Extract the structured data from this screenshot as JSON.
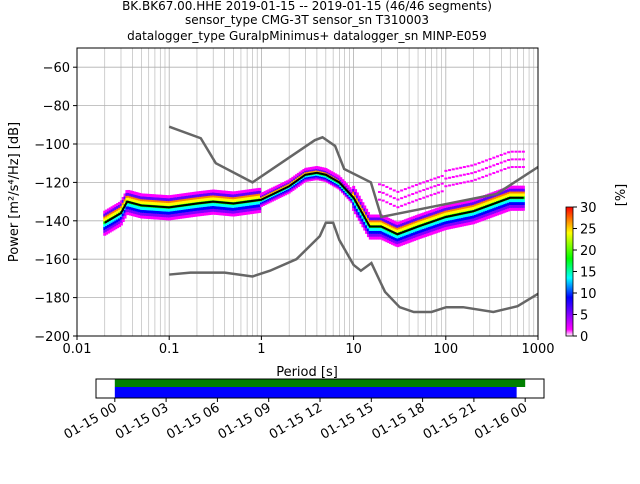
{
  "chart_data": {
    "type": "line",
    "title_lines": [
      "BK.BK67.00.HHE   2019-01-15 -- 2019-01-15  (46/46 segments)",
      "sensor_type CMG-3T sensor_sn T310003",
      "datalogger_type GuralpMinimus+ datalogger_sn MINP-E059"
    ],
    "xlabel": "Period [s]",
    "ylabel": "Power [m²/s⁴/Hz] [dB]",
    "xscale": "log",
    "xlim": [
      0.01,
      1000
    ],
    "ylim": [
      -200,
      -50
    ],
    "x_ticks": [
      {
        "v": 0.01,
        "label": "0.01"
      },
      {
        "v": 0.1,
        "label": "0.1"
      },
      {
        "v": 1,
        "label": "1"
      },
      {
        "v": 10,
        "label": "10"
      },
      {
        "v": 100,
        "label": "100"
      },
      {
        "v": 1000,
        "label": "1000"
      }
    ],
    "y_ticks": [
      {
        "v": -60,
        "label": "−60"
      },
      {
        "v": -80,
        "label": "−80"
      },
      {
        "v": -100,
        "label": "−100"
      },
      {
        "v": -120,
        "label": "−120"
      },
      {
        "v": -140,
        "label": "−140"
      },
      {
        "v": -160,
        "label": "−160"
      },
      {
        "v": -180,
        "label": "−180"
      },
      {
        "v": -200,
        "label": "−200"
      }
    ],
    "grid": true,
    "series": [
      {
        "name": "NHNM",
        "color": "#666666",
        "points": [
          [
            0.1,
            -91
          ],
          [
            0.22,
            -97
          ],
          [
            0.32,
            -110
          ],
          [
            0.8,
            -120
          ],
          [
            3.8,
            -98
          ],
          [
            4.6,
            -96.5
          ],
          [
            6.3,
            -101
          ],
          [
            7.9,
            -113
          ],
          [
            15.4,
            -120
          ],
          [
            20,
            -138
          ],
          [
            354.8,
            -126
          ],
          [
            1000,
            -112
          ]
        ]
      },
      {
        "name": "NLNM",
        "color": "#666666",
        "points": [
          [
            0.1,
            -168
          ],
          [
            0.17,
            -167
          ],
          [
            0.4,
            -167
          ],
          [
            0.8,
            -169
          ],
          [
            1.24,
            -166
          ],
          [
            2.4,
            -160
          ],
          [
            4.3,
            -148
          ],
          [
            5.0,
            -141
          ],
          [
            6.0,
            -141
          ],
          [
            7.0,
            -150
          ],
          [
            10,
            -163
          ],
          [
            12,
            -166
          ],
          [
            15.6,
            -162
          ],
          [
            21.9,
            -177
          ],
          [
            31.6,
            -185
          ],
          [
            45,
            -187.5
          ],
          [
            70,
            -187.5
          ],
          [
            101,
            -185
          ],
          [
            154,
            -185
          ],
          [
            328,
            -187.5
          ],
          [
            600,
            -184.5
          ],
          [
            1000,
            -178
          ]
        ]
      },
      {
        "name": "mean",
        "color": "#000000",
        "points": [
          [
            0.02,
            -141
          ],
          [
            0.03,
            -136
          ],
          [
            0.035,
            -130
          ],
          [
            0.05,
            -132
          ],
          [
            0.1,
            -133
          ],
          [
            0.2,
            -131
          ],
          [
            0.3,
            -130
          ],
          [
            0.5,
            -131
          ],
          [
            1,
            -129
          ],
          [
            2,
            -122
          ],
          [
            3,
            -116
          ],
          [
            4,
            -115
          ],
          [
            5,
            -116
          ],
          [
            7,
            -120
          ],
          [
            10,
            -128
          ],
          [
            15,
            -143
          ],
          [
            20,
            -143
          ],
          [
            30,
            -147
          ],
          [
            50,
            -143
          ],
          [
            100,
            -138
          ],
          [
            200,
            -135
          ],
          [
            500,
            -128
          ],
          [
            700,
            -128
          ]
        ]
      }
    ],
    "colorbar": {
      "label": "[%]",
      "range": [
        0,
        30
      ],
      "ticks": [
        {
          "v": 0,
          "label": "0"
        },
        {
          "v": 5,
          "label": "5"
        },
        {
          "v": 10,
          "label": "10"
        },
        {
          "v": 15,
          "label": "15"
        },
        {
          "v": 20,
          "label": "20"
        },
        {
          "v": 25,
          "label": "25"
        },
        {
          "v": 30,
          "label": "30"
        }
      ]
    },
    "coverage": {
      "time_ticks": [
        "01-15 00",
        "01-15 03",
        "01-15 06",
        "01-15 09",
        "01-15 12",
        "01-15 15",
        "01-15 18",
        "01-15 21",
        "01-16 00"
      ],
      "xlim_hours": [
        -1.1,
        25.1
      ],
      "green_hours": [
        0,
        24
      ],
      "blue_hours": [
        0,
        23.5
      ],
      "green_color": "#008000",
      "blue_color": "#0000ff"
    }
  }
}
